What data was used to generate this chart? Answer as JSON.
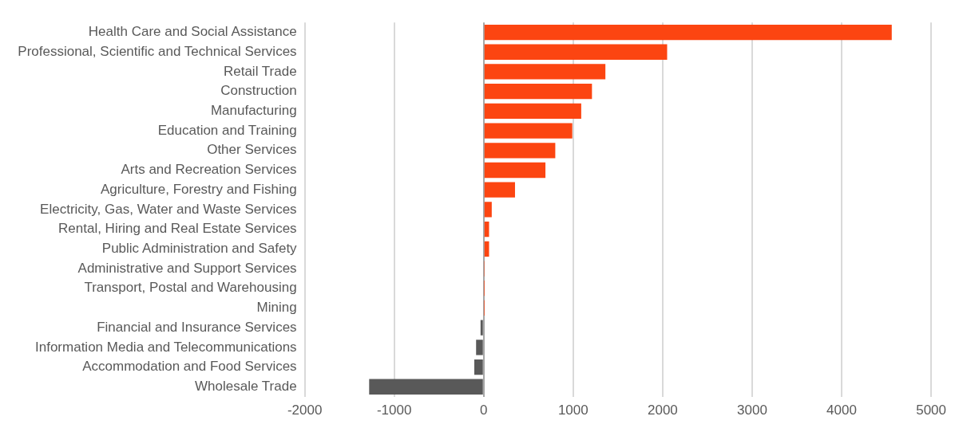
{
  "chart_data": {
    "type": "bar",
    "orientation": "horizontal",
    "categories": [
      "Health Care and Social Assistance",
      "Professional, Scientific and Technical Services",
      "Retail Trade",
      "Construction",
      "Manufacturing",
      "Education and Training",
      "Other Services",
      "Arts and Recreation Services",
      "Agriculture, Forestry and Fishing",
      "Electricity, Gas, Water and Waste Services",
      "Rental, Hiring and Real Estate Services",
      "Public Administration and Safety",
      "Administrative and Support Services",
      "Transport, Postal and Warehousing",
      "Mining",
      "Financial and Insurance Services",
      "Information Media and Telecommunications",
      "Accommodation and Food Services",
      "Wholesale Trade"
    ],
    "values": [
      4560,
      2050,
      1360,
      1210,
      1090,
      990,
      800,
      690,
      350,
      90,
      60,
      60,
      5,
      3,
      3,
      -35,
      -85,
      -105,
      -1280
    ],
    "colors": [
      "#fc4511",
      "#fc4511",
      "#fc4511",
      "#fc4511",
      "#fc4511",
      "#fc4511",
      "#fc4511",
      "#fc4511",
      "#fc4511",
      "#fc4511",
      "#fc4511",
      "#fc4511",
      "#fc4511",
      "#fc4511",
      "#fc4511",
      "#595959",
      "#595959",
      "#595959",
      "#595959"
    ],
    "xlim": [
      -2000,
      5000
    ],
    "xticks": [
      -2000,
      -1000,
      0,
      1000,
      2000,
      3000,
      4000,
      5000
    ],
    "grid": "x",
    "legend": false
  }
}
